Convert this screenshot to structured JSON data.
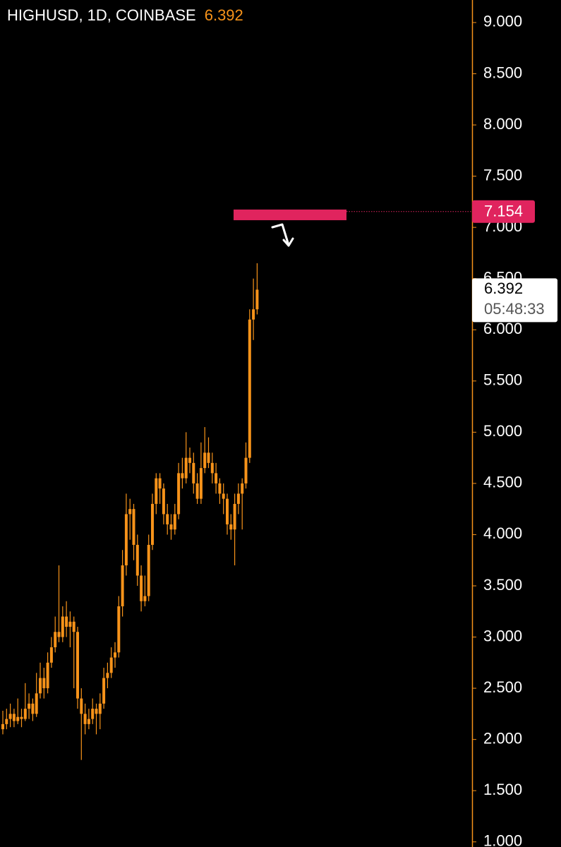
{
  "chart_data": {
    "type": "candlestick",
    "title": "HIGHUSD, 1D, COINBASE",
    "last_price": 6.392,
    "countdown": "05:48:33",
    "alert_line": 7.154,
    "zone": [
      7.07,
      7.174
    ],
    "color": "#f7931a",
    "ylim": [
      0.95,
      9.22
    ],
    "yticks": [
      {
        "value": 9,
        "label": "9.000"
      },
      {
        "value": 8.5,
        "label": "8.500"
      },
      {
        "value": 8,
        "label": "8.000"
      },
      {
        "value": 7.5,
        "label": "7.500"
      },
      {
        "value": 7,
        "label": "7.000"
      },
      {
        "value": 6.5,
        "label": "6.500"
      },
      {
        "value": 6,
        "label": "6.000"
      },
      {
        "value": 5.5,
        "label": "5.500"
      },
      {
        "value": 5,
        "label": "5.000"
      },
      {
        "value": 4.5,
        "label": "4.500"
      },
      {
        "value": 4,
        "label": "4.000"
      },
      {
        "value": 3.5,
        "label": "3.500"
      },
      {
        "value": 3,
        "label": "3.000"
      },
      {
        "value": 2.5,
        "label": "2.500"
      },
      {
        "value": 2,
        "label": "2.000"
      },
      {
        "value": 1.5,
        "label": "1.500"
      },
      {
        "value": 1,
        "label": "1.000"
      }
    ],
    "open": [
      2.1,
      2.15,
      2.2,
      2.25,
      2.18,
      2.22,
      2.2,
      2.3,
      2.35,
      2.25,
      2.45,
      2.6,
      2.5,
      2.75,
      2.9,
      3.05,
      3.0,
      3.2,
      3.1,
      3.15,
      3.05,
      2.4,
      2.25,
      2.15,
      2.2,
      2.3,
      2.25,
      2.35,
      2.6,
      2.65,
      2.8,
      2.85,
      3.3,
      3.7,
      4.2,
      4.25,
      3.9,
      3.6,
      3.35,
      3.4,
      3.9,
      4.3,
      4.55,
      4.45,
      4.2,
      4.1,
      4.05,
      4.2,
      4.6,
      4.55,
      4.75,
      4.7,
      4.5,
      4.35,
      4.65,
      4.8,
      4.7,
      4.6,
      4.5,
      4.4,
      4.35,
      4.1,
      4.05,
      4.3,
      4.4,
      4.5,
      4.75,
      6.1,
      6.2
    ],
    "high": [
      2.28,
      2.3,
      2.35,
      2.3,
      2.4,
      2.3,
      2.55,
      2.45,
      2.4,
      2.65,
      2.75,
      2.7,
      2.85,
      3.0,
      3.2,
      3.7,
      3.3,
      3.35,
      3.25,
      3.2,
      3.1,
      2.5,
      2.35,
      2.3,
      2.4,
      2.35,
      2.45,
      2.7,
      2.75,
      2.9,
      2.95,
      3.4,
      3.85,
      4.4,
      4.35,
      4.3,
      4.0,
      3.7,
      3.6,
      4.0,
      4.4,
      4.6,
      4.6,
      4.5,
      4.3,
      4.2,
      4.3,
      4.7,
      4.75,
      5.0,
      4.85,
      4.8,
      4.6,
      4.9,
      5.05,
      4.95,
      4.8,
      4.7,
      4.55,
      4.5,
      4.4,
      4.2,
      4.4,
      4.5,
      4.55,
      4.9,
      6.2,
      6.5,
      6.65
    ],
    "low": [
      2.05,
      2.1,
      2.12,
      2.12,
      2.15,
      2.12,
      2.18,
      2.2,
      2.18,
      2.22,
      2.4,
      2.4,
      2.45,
      2.7,
      2.85,
      2.95,
      2.95,
      3.0,
      2.9,
      2.5,
      2.3,
      1.8,
      2.05,
      2.1,
      2.15,
      2.05,
      2.1,
      2.3,
      2.5,
      2.6,
      2.7,
      2.8,
      3.2,
      3.6,
      3.95,
      3.75,
      3.5,
      3.25,
      3.3,
      3.35,
      3.85,
      4.2,
      4.3,
      4.1,
      4.0,
      3.95,
      4.0,
      4.15,
      4.45,
      4.5,
      4.6,
      4.4,
      4.3,
      4.3,
      4.6,
      4.65,
      4.5,
      4.4,
      4.3,
      4.2,
      4.0,
      3.95,
      3.7,
      4.2,
      4.05,
      4.45,
      4.7,
      5.9,
      6.15
    ],
    "close": [
      2.15,
      2.2,
      2.25,
      2.18,
      2.22,
      2.2,
      2.3,
      2.35,
      2.25,
      2.45,
      2.6,
      2.5,
      2.75,
      2.9,
      3.05,
      3.0,
      3.2,
      3.1,
      3.15,
      3.05,
      2.4,
      2.25,
      2.15,
      2.2,
      2.3,
      2.25,
      2.35,
      2.6,
      2.65,
      2.8,
      2.85,
      3.3,
      3.7,
      4.2,
      4.25,
      3.9,
      3.6,
      3.35,
      3.4,
      3.9,
      4.3,
      4.55,
      4.45,
      4.2,
      4.1,
      4.05,
      4.2,
      4.6,
      4.55,
      4.75,
      4.7,
      4.5,
      4.35,
      4.65,
      4.8,
      4.7,
      4.6,
      4.5,
      4.4,
      4.35,
      4.1,
      4.05,
      4.3,
      4.4,
      4.5,
      4.75,
      6.1,
      6.2,
      6.392
    ]
  }
}
